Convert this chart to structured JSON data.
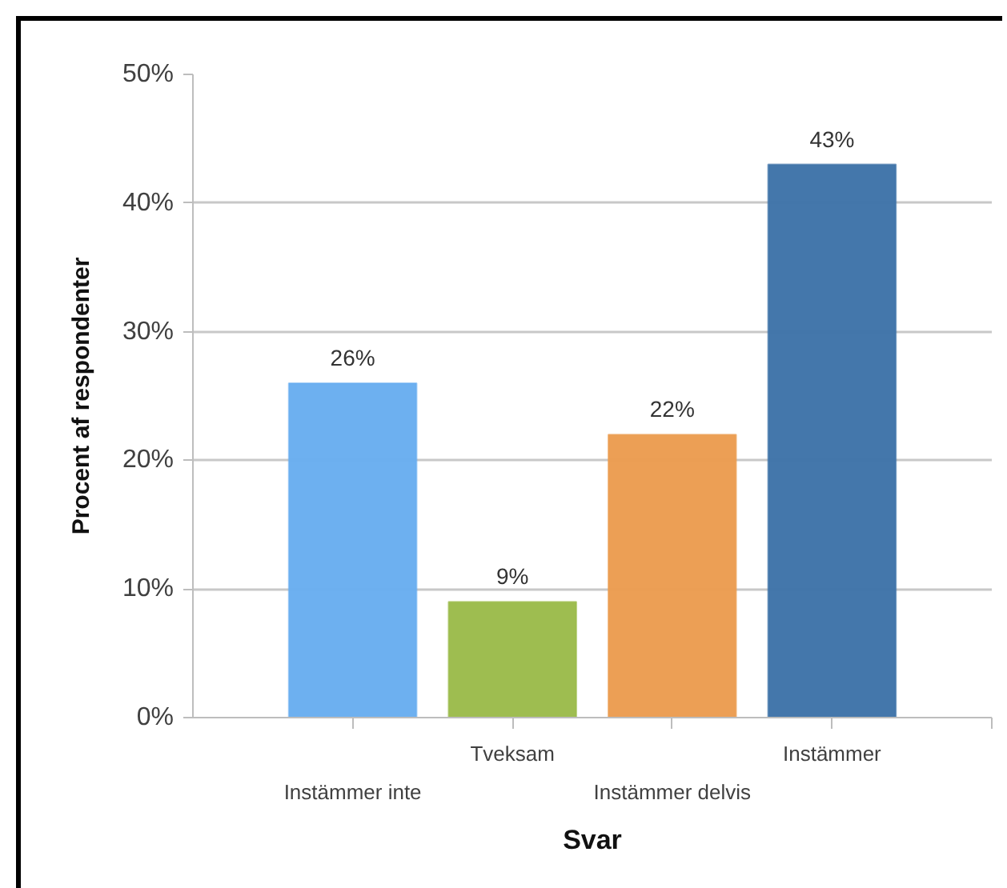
{
  "chart_data": {
    "type": "bar",
    "xlabel": "Svar",
    "ylabel": "Procent af respondenter",
    "categories": [
      "Instämmer inte",
      "Tveksam",
      "Instämmer delvis",
      "Instämmer"
    ],
    "values": [
      26,
      9,
      22,
      43
    ],
    "colors": [
      "#68adf0",
      "#9bbb4a",
      "#eb9c4f",
      "#3e73a8"
    ],
    "value_labels": [
      "26%",
      "9%",
      "22%",
      "43%"
    ],
    "ylim": [
      0,
      50
    ],
    "yticks": [
      {
        "value": 0,
        "label": "0%"
      },
      {
        "value": 10,
        "label": "10%"
      },
      {
        "value": 20,
        "label": "20%"
      },
      {
        "value": 30,
        "label": "30%"
      },
      {
        "value": 40,
        "label": "40%"
      },
      {
        "value": 50,
        "label": "50%"
      }
    ],
    "grid": "y"
  }
}
